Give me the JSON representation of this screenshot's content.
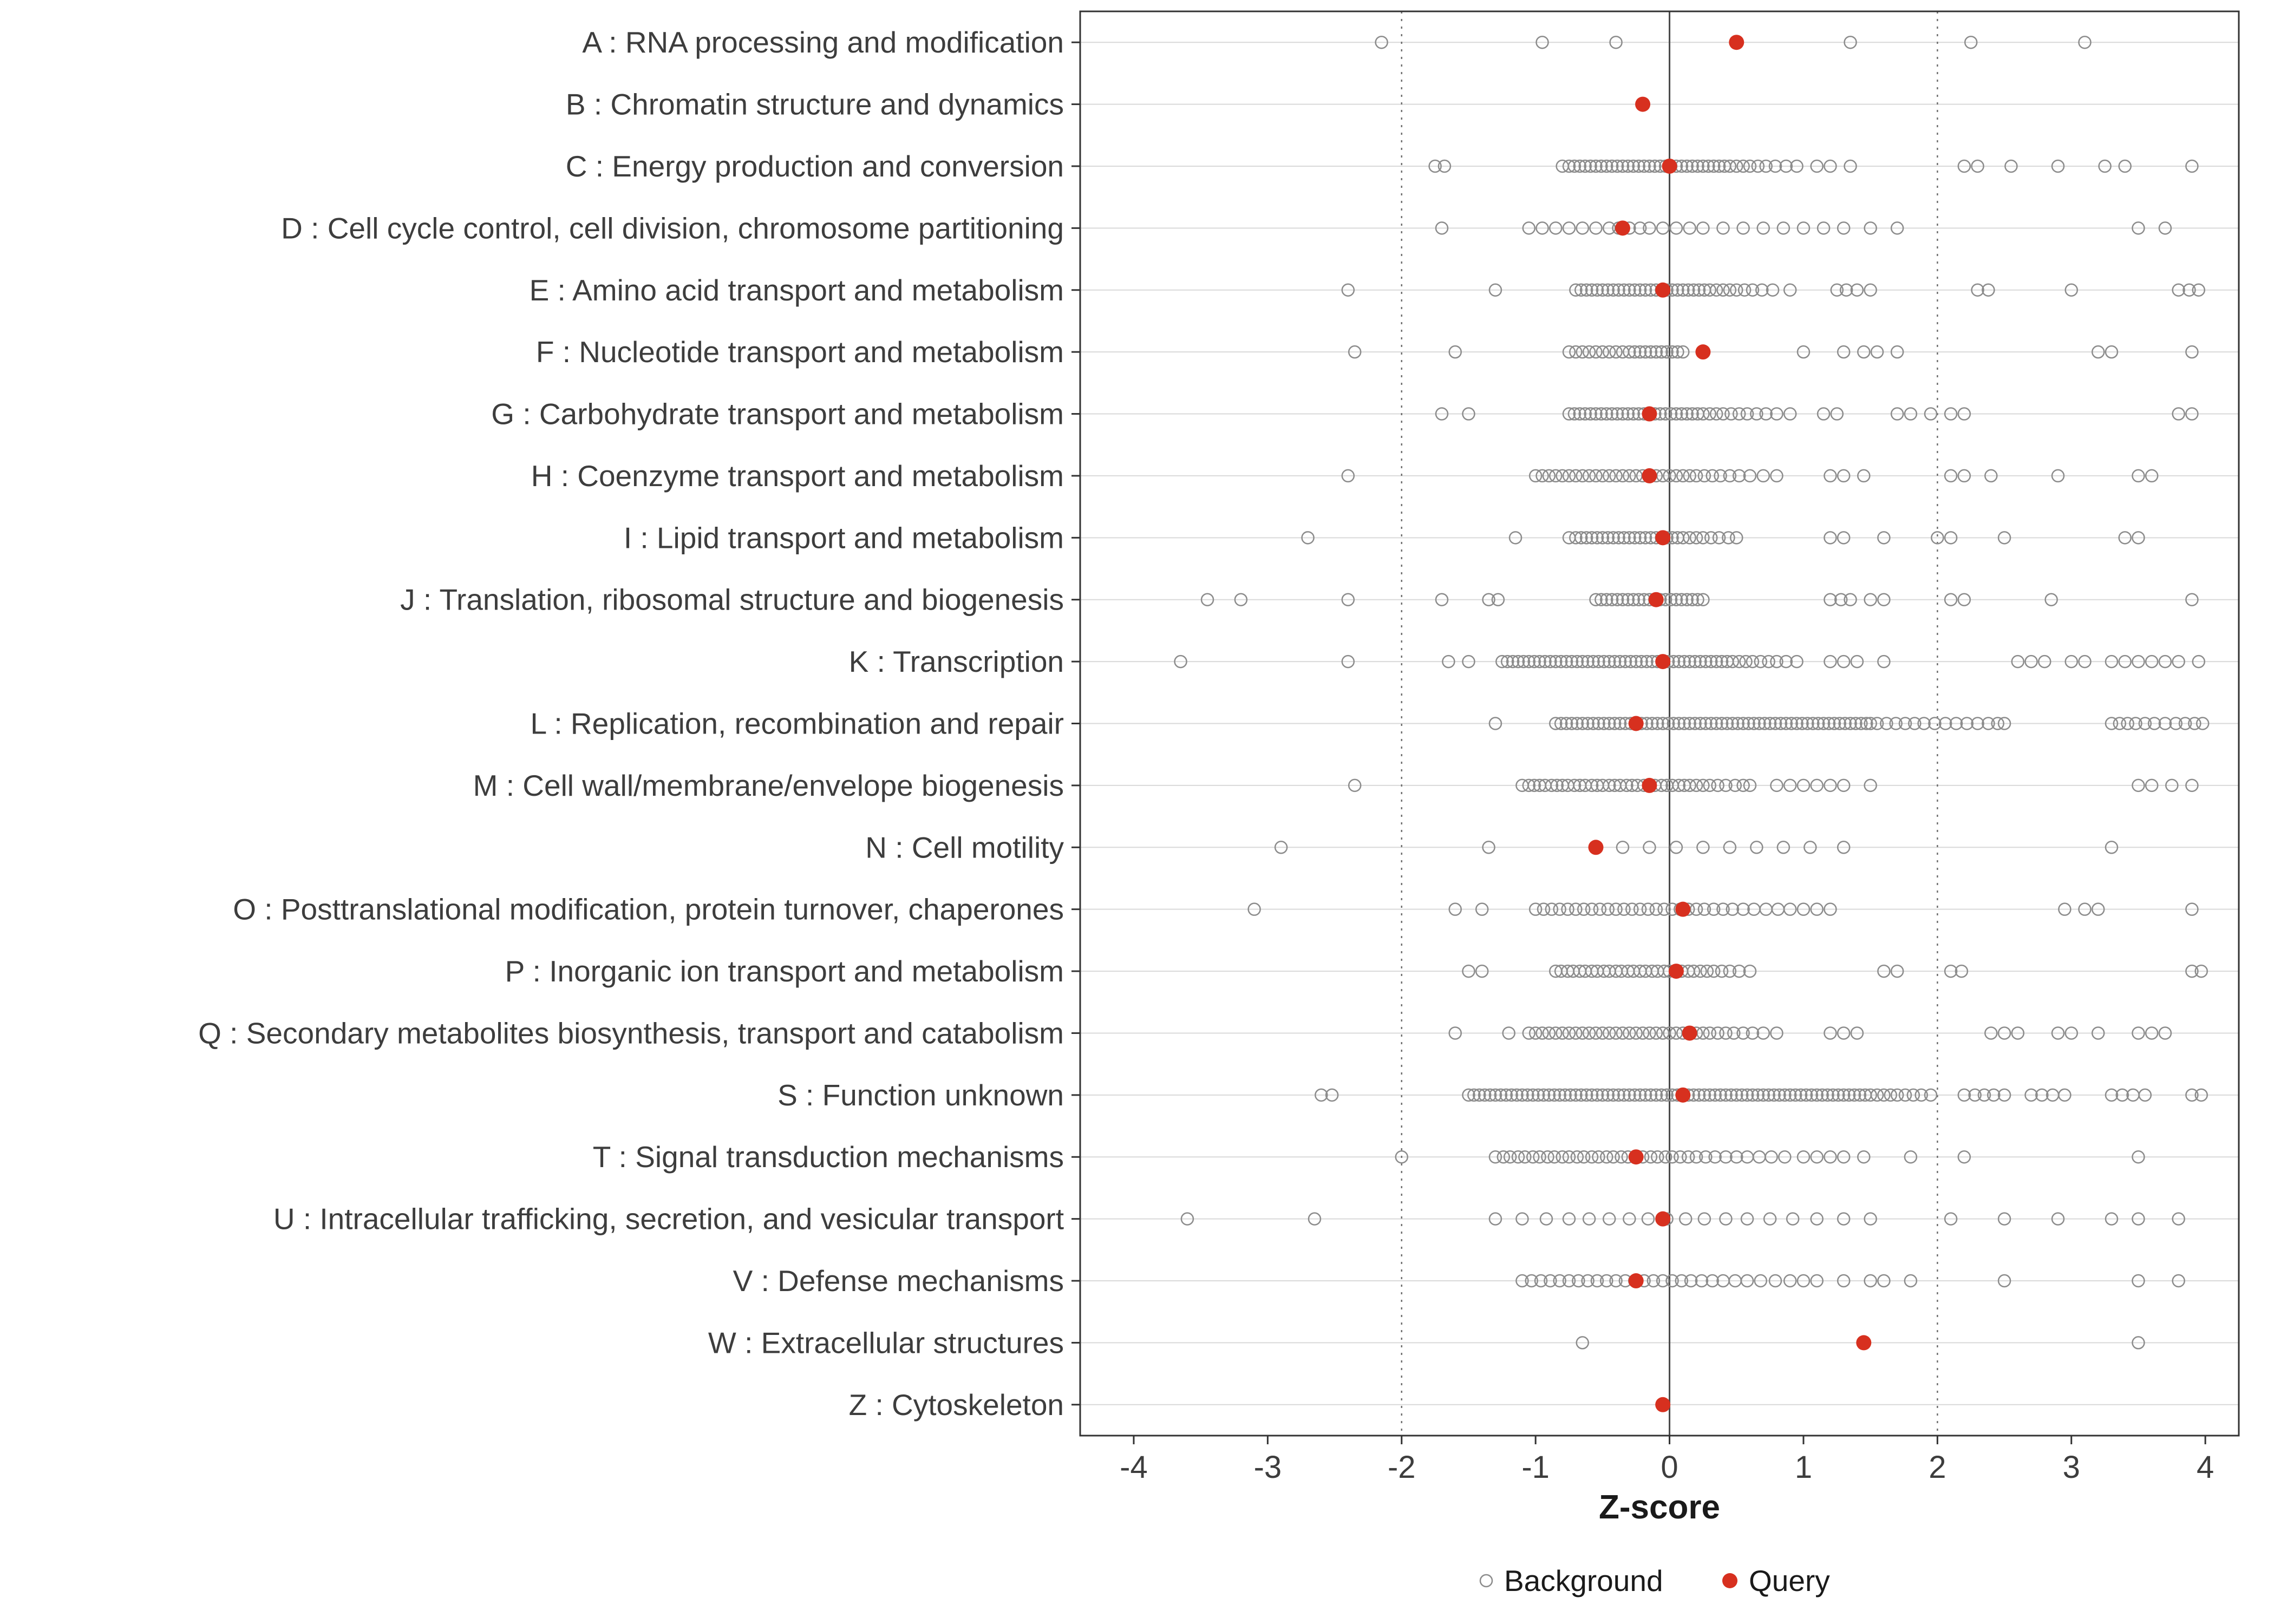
{
  "chart_data": {
    "type": "scatter",
    "title": "",
    "xlabel": "Z-score",
    "ylabel": "",
    "xlim": [
      -4.4,
      4.25
    ],
    "x_ticks": [
      -4,
      -3,
      -2,
      -1,
      0,
      1,
      2,
      3,
      4
    ],
    "grid": "horizontal-major",
    "legend_position": "bottom",
    "reference_lines": {
      "solid": [
        0
      ],
      "dotted": [
        -2,
        2
      ]
    },
    "legend": [
      {
        "label": "Background",
        "marker": "open-circle"
      },
      {
        "label": "Query",
        "marker": "filled-circle"
      }
    ],
    "colors": {
      "background_point": "#8c8c8c",
      "query_point": "#d7301f",
      "gridline": "#d9d9d9",
      "ref_dotted": "#6e6e6e",
      "ref_solid": "#4a4a4a",
      "axis": "#333333",
      "text": "#3d3d3d",
      "panel_border": "#333333"
    },
    "categories": [
      {
        "label": "A : RNA processing and modification",
        "query": 0.5,
        "background": [
          -2.15,
          -0.95,
          -0.4,
          1.35,
          2.25,
          3.1
        ]
      },
      {
        "label": "B : Chromatin structure and dynamics",
        "query": -0.2,
        "background": []
      },
      {
        "label": "C : Energy production and conversion",
        "query": 0.0,
        "background": [
          -1.75,
          -1.68,
          -0.8,
          -0.75,
          -0.71,
          -0.67,
          -0.63,
          -0.59,
          -0.55,
          -0.51,
          -0.47,
          -0.43,
          -0.39,
          -0.35,
          -0.31,
          -0.27,
          -0.23,
          -0.19,
          -0.15,
          -0.11,
          -0.07,
          -0.03,
          0.01,
          0.05,
          0.09,
          0.13,
          0.17,
          0.21,
          0.25,
          0.29,
          0.33,
          0.37,
          0.41,
          0.45,
          0.5,
          0.55,
          0.6,
          0.66,
          0.72,
          0.79,
          0.87,
          0.95,
          1.1,
          1.2,
          1.35,
          2.2,
          2.3,
          2.55,
          2.9,
          3.25,
          3.4,
          3.9
        ]
      },
      {
        "label": "D : Cell cycle control, cell division, chromosome partitioning",
        "query": -0.35,
        "background": [
          -1.7,
          -1.05,
          -0.95,
          -0.85,
          -0.75,
          -0.65,
          -0.55,
          -0.45,
          -0.38,
          -0.3,
          -0.22,
          -0.15,
          -0.05,
          0.05,
          0.15,
          0.25,
          0.4,
          0.55,
          0.7,
          0.85,
          1.0,
          1.15,
          1.3,
          1.5,
          1.7,
          3.5,
          3.7
        ]
      },
      {
        "label": "E : Amino acid transport and metabolism",
        "query": -0.05,
        "background": [
          -2.4,
          -1.3,
          -0.7,
          -0.66,
          -0.62,
          -0.58,
          -0.54,
          -0.5,
          -0.46,
          -0.42,
          -0.38,
          -0.34,
          -0.3,
          -0.26,
          -0.22,
          -0.18,
          -0.14,
          -0.1,
          -0.06,
          -0.02,
          0.02,
          0.06,
          0.1,
          0.14,
          0.18,
          0.22,
          0.26,
          0.3,
          0.35,
          0.4,
          0.45,
          0.5,
          0.56,
          0.62,
          0.69,
          0.77,
          0.9,
          1.25,
          1.32,
          1.4,
          1.5,
          2.3,
          2.38,
          3.0,
          3.8,
          3.88,
          3.95
        ]
      },
      {
        "label": "F : Nucleotide transport and metabolism",
        "query": 0.25,
        "background": [
          -2.35,
          -1.6,
          -0.75,
          -0.7,
          -0.65,
          -0.6,
          -0.55,
          -0.5,
          -0.45,
          -0.4,
          -0.35,
          -0.3,
          -0.26,
          -0.22,
          -0.18,
          -0.14,
          -0.1,
          -0.06,
          -0.02,
          0.02,
          0.06,
          0.1,
          1.0,
          1.3,
          1.45,
          1.55,
          1.7,
          3.2,
          3.3,
          3.9
        ]
      },
      {
        "label": "G : Carbohydrate transport and metabolism",
        "query": -0.15,
        "background": [
          -1.7,
          -1.5,
          -0.75,
          -0.71,
          -0.67,
          -0.63,
          -0.59,
          -0.55,
          -0.51,
          -0.47,
          -0.43,
          -0.39,
          -0.35,
          -0.31,
          -0.27,
          -0.23,
          -0.19,
          -0.15,
          -0.11,
          -0.07,
          -0.03,
          0.01,
          0.05,
          0.09,
          0.13,
          0.17,
          0.21,
          0.25,
          0.3,
          0.35,
          0.4,
          0.46,
          0.52,
          0.58,
          0.65,
          0.72,
          0.8,
          0.9,
          1.15,
          1.25,
          1.7,
          1.8,
          1.95,
          2.1,
          2.2,
          3.8,
          3.9
        ]
      },
      {
        "label": "H : Coenzyme transport and metabolism",
        "query": -0.15,
        "background": [
          -2.4,
          -1.0,
          -0.95,
          -0.9,
          -0.85,
          -0.8,
          -0.75,
          -0.7,
          -0.65,
          -0.6,
          -0.55,
          -0.5,
          -0.45,
          -0.4,
          -0.35,
          -0.3,
          -0.25,
          -0.2,
          -0.15,
          -0.1,
          -0.05,
          0.0,
          0.05,
          0.1,
          0.15,
          0.2,
          0.26,
          0.32,
          0.38,
          0.45,
          0.52,
          0.6,
          0.7,
          0.8,
          1.2,
          1.3,
          1.45,
          2.1,
          2.2,
          2.4,
          2.9,
          3.5,
          3.6
        ]
      },
      {
        "label": "I : Lipid transport and metabolism",
        "query": -0.05,
        "background": [
          -2.7,
          -1.15,
          -0.75,
          -0.7,
          -0.66,
          -0.62,
          -0.58,
          -0.54,
          -0.5,
          -0.46,
          -0.42,
          -0.38,
          -0.34,
          -0.3,
          -0.26,
          -0.22,
          -0.18,
          -0.14,
          -0.1,
          -0.06,
          -0.02,
          0.02,
          0.06,
          0.1,
          0.15,
          0.2,
          0.25,
          0.31,
          0.37,
          0.44,
          0.5,
          1.2,
          1.3,
          1.6,
          2.0,
          2.1,
          2.5,
          3.4,
          3.5
        ]
      },
      {
        "label": "J : Translation, ribosomal structure and biogenesis",
        "query": -0.1,
        "background": [
          -3.45,
          -3.2,
          -2.4,
          -1.7,
          -1.35,
          -1.28,
          -0.55,
          -0.51,
          -0.47,
          -0.43,
          -0.39,
          -0.35,
          -0.31,
          -0.27,
          -0.23,
          -0.19,
          -0.15,
          -0.11,
          -0.07,
          -0.03,
          0.01,
          0.05,
          0.09,
          0.13,
          0.17,
          0.21,
          0.25,
          1.2,
          1.28,
          1.35,
          1.5,
          1.6,
          2.1,
          2.2,
          2.85,
          3.9
        ]
      },
      {
        "label": "K : Transcription",
        "query": -0.05,
        "background": [
          -3.65,
          -2.4,
          -1.65,
          -1.5,
          -1.25,
          -1.21,
          -1.17,
          -1.13,
          -1.09,
          -1.05,
          -1.01,
          -0.97,
          -0.93,
          -0.89,
          -0.85,
          -0.81,
          -0.77,
          -0.73,
          -0.69,
          -0.65,
          -0.61,
          -0.57,
          -0.53,
          -0.49,
          -0.45,
          -0.41,
          -0.37,
          -0.33,
          -0.29,
          -0.25,
          -0.21,
          -0.17,
          -0.13,
          -0.09,
          -0.05,
          -0.01,
          0.03,
          0.07,
          0.11,
          0.15,
          0.19,
          0.23,
          0.27,
          0.31,
          0.35,
          0.39,
          0.43,
          0.47,
          0.52,
          0.57,
          0.62,
          0.68,
          0.74,
          0.8,
          0.87,
          0.95,
          1.2,
          1.3,
          1.4,
          1.6,
          2.6,
          2.7,
          2.8,
          3.0,
          3.1,
          3.3,
          3.4,
          3.5,
          3.6,
          3.7,
          3.8,
          3.95
        ]
      },
      {
        "label": "L : Replication, recombination and repair",
        "query": -0.25,
        "background": [
          -1.3,
          -0.85,
          -0.81,
          -0.77,
          -0.73,
          -0.69,
          -0.65,
          -0.61,
          -0.57,
          -0.53,
          -0.49,
          -0.45,
          -0.41,
          -0.37,
          -0.33,
          -0.29,
          -0.25,
          -0.21,
          -0.17,
          -0.13,
          -0.09,
          -0.05,
          -0.01,
          0.03,
          0.07,
          0.11,
          0.15,
          0.19,
          0.23,
          0.27,
          0.31,
          0.35,
          0.39,
          0.43,
          0.47,
          0.51,
          0.55,
          0.59,
          0.63,
          0.67,
          0.71,
          0.75,
          0.79,
          0.83,
          0.87,
          0.91,
          0.95,
          0.99,
          1.03,
          1.07,
          1.11,
          1.15,
          1.19,
          1.23,
          1.27,
          1.31,
          1.35,
          1.39,
          1.43,
          1.47,
          1.5,
          1.55,
          1.62,
          1.69,
          1.76,
          1.83,
          1.9,
          1.98,
          2.06,
          2.14,
          2.22,
          2.3,
          2.38,
          2.45,
          2.5,
          3.3,
          3.36,
          3.42,
          3.48,
          3.55,
          3.62,
          3.7,
          3.78,
          3.85,
          3.92,
          3.98
        ]
      },
      {
        "label": "M : Cell wall/membrane/envelope biogenesis",
        "query": -0.15,
        "background": [
          -2.35,
          -1.1,
          -1.05,
          -1.01,
          -0.97,
          -0.93,
          -0.88,
          -0.84,
          -0.8,
          -0.76,
          -0.71,
          -0.67,
          -0.63,
          -0.58,
          -0.54,
          -0.5,
          -0.45,
          -0.41,
          -0.37,
          -0.32,
          -0.28,
          -0.24,
          -0.19,
          -0.15,
          -0.11,
          -0.06,
          -0.02,
          0.02,
          0.07,
          0.11,
          0.15,
          0.2,
          0.25,
          0.3,
          0.36,
          0.42,
          0.49,
          0.55,
          0.6,
          0.8,
          0.9,
          1.0,
          1.1,
          1.2,
          1.3,
          1.5,
          3.5,
          3.6,
          3.75,
          3.9
        ]
      },
      {
        "label": "N : Cell motility",
        "query": -0.55,
        "background": [
          -2.9,
          -1.35,
          -0.35,
          -0.15,
          0.05,
          0.25,
          0.45,
          0.65,
          0.85,
          1.05,
          1.3,
          3.3
        ]
      },
      {
        "label": "O : Posttranslational modification, protein turnover, chaperones",
        "query": 0.1,
        "background": [
          -3.1,
          -1.6,
          -1.4,
          -1.0,
          -0.94,
          -0.88,
          -0.82,
          -0.76,
          -0.7,
          -0.64,
          -0.58,
          -0.52,
          -0.46,
          -0.4,
          -0.34,
          -0.28,
          -0.22,
          -0.16,
          -0.1,
          -0.04,
          0.02,
          0.08,
          0.14,
          0.2,
          0.26,
          0.33,
          0.4,
          0.47,
          0.55,
          0.63,
          0.72,
          0.81,
          0.9,
          1.0,
          1.1,
          1.2,
          2.95,
          3.1,
          3.2,
          3.9
        ]
      },
      {
        "label": "P : Inorganic ion transport and metabolism",
        "query": 0.05,
        "background": [
          -1.5,
          -1.4,
          -0.85,
          -0.81,
          -0.76,
          -0.72,
          -0.67,
          -0.63,
          -0.58,
          -0.54,
          -0.49,
          -0.45,
          -0.4,
          -0.36,
          -0.31,
          -0.27,
          -0.22,
          -0.18,
          -0.13,
          -0.09,
          -0.04,
          0.0,
          0.05,
          0.09,
          0.14,
          0.18,
          0.23,
          0.28,
          0.33,
          0.39,
          0.45,
          0.52,
          0.6,
          1.6,
          1.7,
          2.1,
          2.18,
          3.9,
          3.97
        ]
      },
      {
        "label": "Q : Secondary metabolites biosynthesis, transport and catabolism",
        "query": 0.15,
        "background": [
          -1.6,
          -1.2,
          -1.05,
          -1.0,
          -0.95,
          -0.9,
          -0.85,
          -0.8,
          -0.75,
          -0.7,
          -0.65,
          -0.6,
          -0.55,
          -0.5,
          -0.45,
          -0.4,
          -0.35,
          -0.3,
          -0.25,
          -0.2,
          -0.15,
          -0.1,
          -0.05,
          0.0,
          0.05,
          0.1,
          0.15,
          0.2,
          0.25,
          0.3,
          0.36,
          0.42,
          0.48,
          0.55,
          0.62,
          0.7,
          0.8,
          1.2,
          1.3,
          1.4,
          2.4,
          2.5,
          2.6,
          2.9,
          3.0,
          3.2,
          3.5,
          3.6,
          3.7
        ]
      },
      {
        "label": "S : Function unknown",
        "query": 0.1,
        "background": [
          -2.6,
          -2.52,
          -1.5,
          -1.46,
          -1.42,
          -1.38,
          -1.34,
          -1.3,
          -1.26,
          -1.22,
          -1.18,
          -1.14,
          -1.1,
          -1.06,
          -1.02,
          -0.98,
          -0.94,
          -0.9,
          -0.86,
          -0.82,
          -0.78,
          -0.74,
          -0.7,
          -0.66,
          -0.62,
          -0.58,
          -0.54,
          -0.5,
          -0.46,
          -0.42,
          -0.38,
          -0.34,
          -0.3,
          -0.26,
          -0.22,
          -0.18,
          -0.14,
          -0.1,
          -0.06,
          -0.02,
          0.02,
          0.06,
          0.1,
          0.14,
          0.18,
          0.22,
          0.26,
          0.3,
          0.34,
          0.38,
          0.42,
          0.46,
          0.5,
          0.54,
          0.58,
          0.62,
          0.66,
          0.7,
          0.74,
          0.78,
          0.82,
          0.86,
          0.9,
          0.94,
          0.98,
          1.02,
          1.06,
          1.1,
          1.14,
          1.18,
          1.22,
          1.26,
          1.3,
          1.34,
          1.38,
          1.42,
          1.46,
          1.5,
          1.55,
          1.6,
          1.65,
          1.7,
          1.76,
          1.82,
          1.88,
          1.95,
          2.2,
          2.28,
          2.35,
          2.42,
          2.5,
          2.7,
          2.78,
          2.86,
          2.95,
          3.3,
          3.38,
          3.46,
          3.55,
          3.9,
          3.97
        ]
      },
      {
        "label": "T : Signal transduction mechanisms",
        "query": -0.25,
        "background": [
          -2.0,
          -1.3,
          -1.24,
          -1.19,
          -1.13,
          -1.08,
          -1.02,
          -0.97,
          -0.91,
          -0.86,
          -0.8,
          -0.75,
          -0.69,
          -0.64,
          -0.58,
          -0.53,
          -0.47,
          -0.42,
          -0.36,
          -0.31,
          -0.25,
          -0.2,
          -0.14,
          -0.09,
          -0.03,
          0.02,
          0.08,
          0.14,
          0.2,
          0.27,
          0.34,
          0.42,
          0.5,
          0.58,
          0.67,
          0.76,
          0.86,
          1.0,
          1.1,
          1.2,
          1.3,
          1.45,
          1.8,
          2.2,
          3.5
        ]
      },
      {
        "label": "U : Intracellular trafficking, secretion, and vesicular transport",
        "query": -0.05,
        "background": [
          -3.6,
          -2.65,
          -1.3,
          -1.1,
          -0.92,
          -0.75,
          -0.6,
          -0.45,
          -0.3,
          -0.16,
          -0.02,
          0.12,
          0.26,
          0.42,
          0.58,
          0.75,
          0.92,
          1.1,
          1.3,
          1.5,
          2.1,
          2.5,
          2.9,
          3.3,
          3.5,
          3.8
        ]
      },
      {
        "label": "V : Defense mechanisms",
        "query": -0.25,
        "background": [
          -1.1,
          -1.03,
          -0.96,
          -0.89,
          -0.82,
          -0.75,
          -0.68,
          -0.61,
          -0.54,
          -0.47,
          -0.4,
          -0.33,
          -0.26,
          -0.19,
          -0.12,
          -0.05,
          0.02,
          0.09,
          0.16,
          0.24,
          0.32,
          0.4,
          0.49,
          0.58,
          0.68,
          0.79,
          0.9,
          1.0,
          1.1,
          1.3,
          1.5,
          1.6,
          1.8,
          2.5,
          3.5,
          3.8
        ]
      },
      {
        "label": "W : Extracellular structures",
        "query": 1.45,
        "background": [
          -0.65,
          3.5
        ]
      },
      {
        "label": "Z : Cytoskeleton",
        "query": -0.05,
        "background": []
      }
    ]
  }
}
